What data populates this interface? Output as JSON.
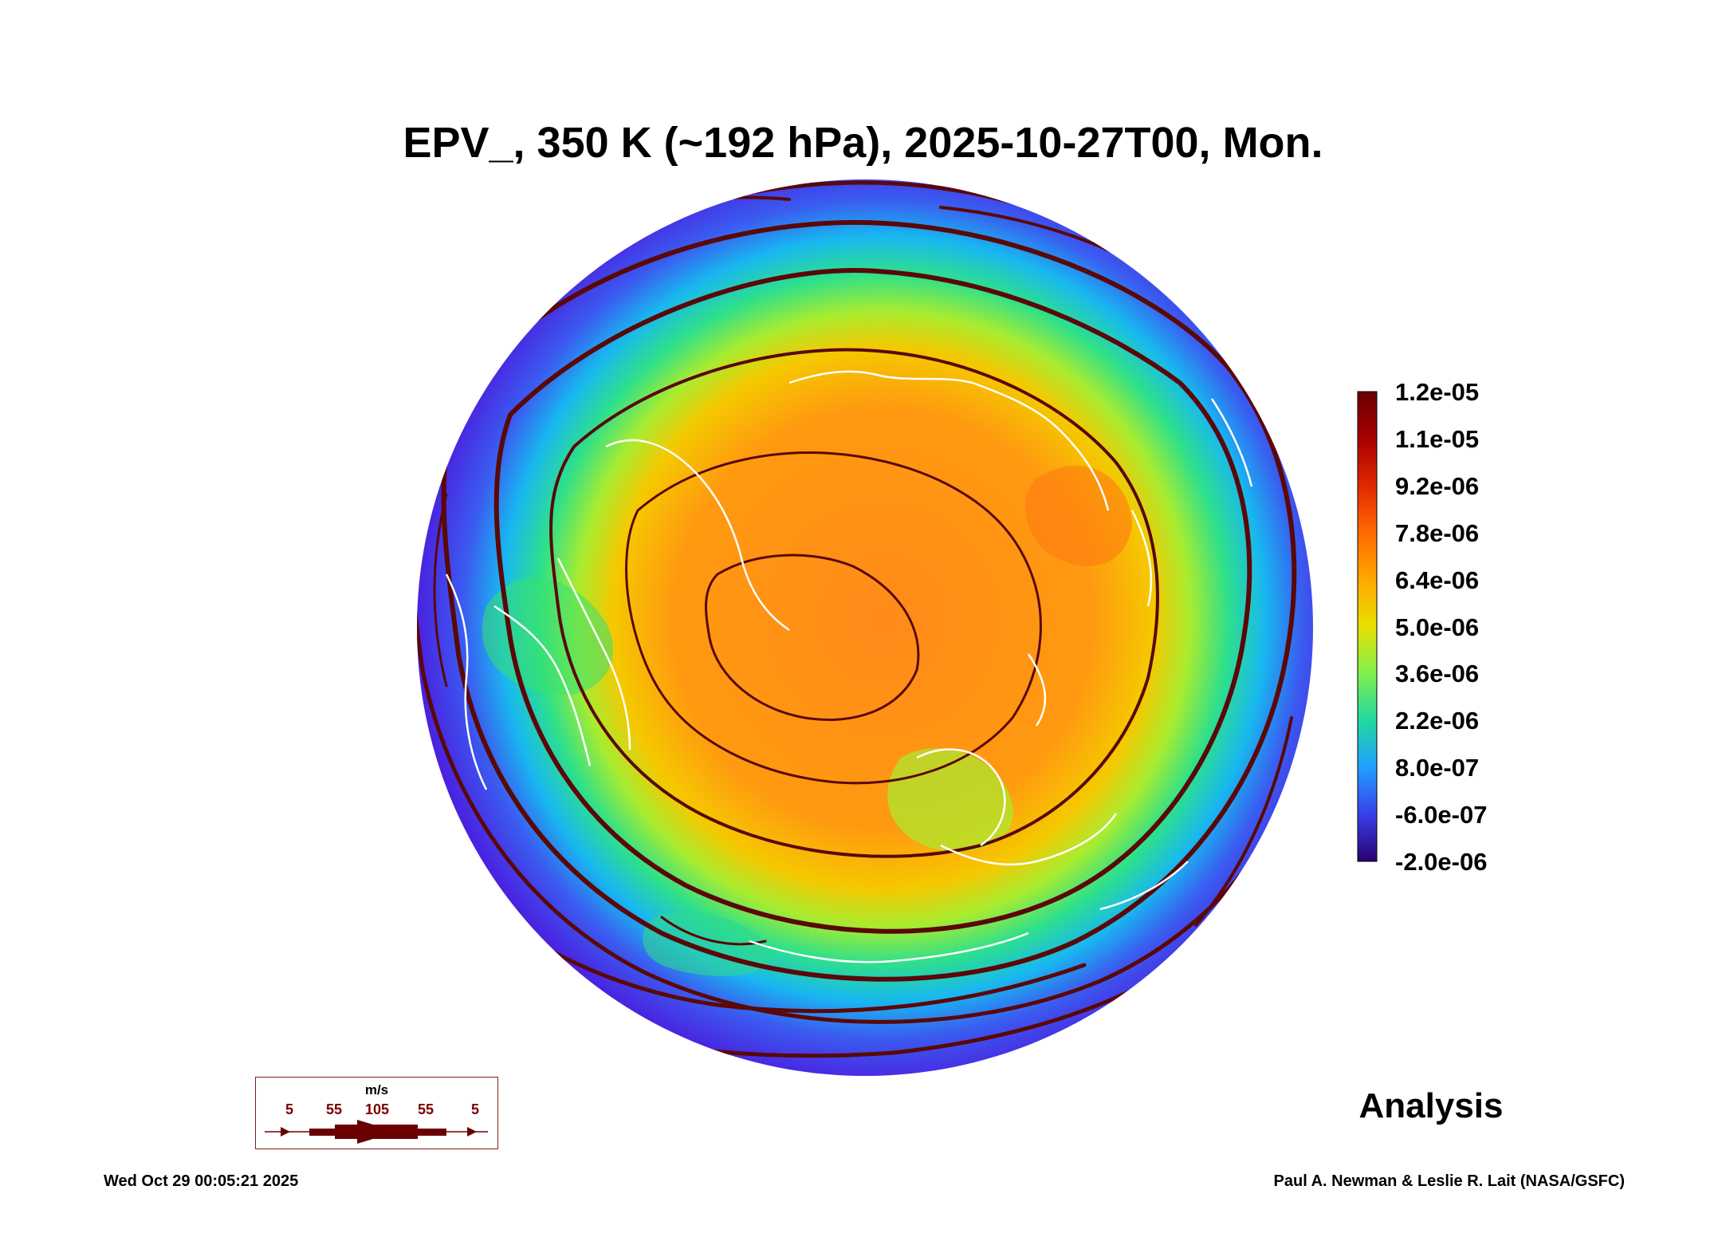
{
  "title": "EPV_, 350 K (~192 hPa), 2025-10-27T00, Mon.",
  "map": {
    "projection": "north-polar-stereographic",
    "field": "Ertel potential vorticity",
    "overlay": "wind streamlines",
    "coastline_color": "#ffffff"
  },
  "colorbar": {
    "labels": [
      "1.2e-05",
      "1.1e-05",
      "9.2e-06",
      "7.8e-06",
      "6.4e-06",
      "5.0e-06",
      "3.6e-06",
      "2.2e-06",
      "8.0e-07",
      "-6.0e-07",
      "-2.0e-06"
    ],
    "colors": [
      "#7a0000",
      "#c81e00",
      "#ff5a00",
      "#ff9a00",
      "#f0d800",
      "#a0f040",
      "#30e080",
      "#20b0f0",
      "#2878ff",
      "#5020e0",
      "#2a0070"
    ]
  },
  "wind_legend": {
    "unit": "m/s",
    "ticks": [
      "5",
      "55",
      "105",
      "55",
      "5"
    ],
    "color": "#6a0000"
  },
  "label_right": "Analysis",
  "timestamp": "Wed Oct 29 00:05:21 2025",
  "credit": "Paul A. Newman & Leslie R. Lait (NASA/GSFC)"
}
